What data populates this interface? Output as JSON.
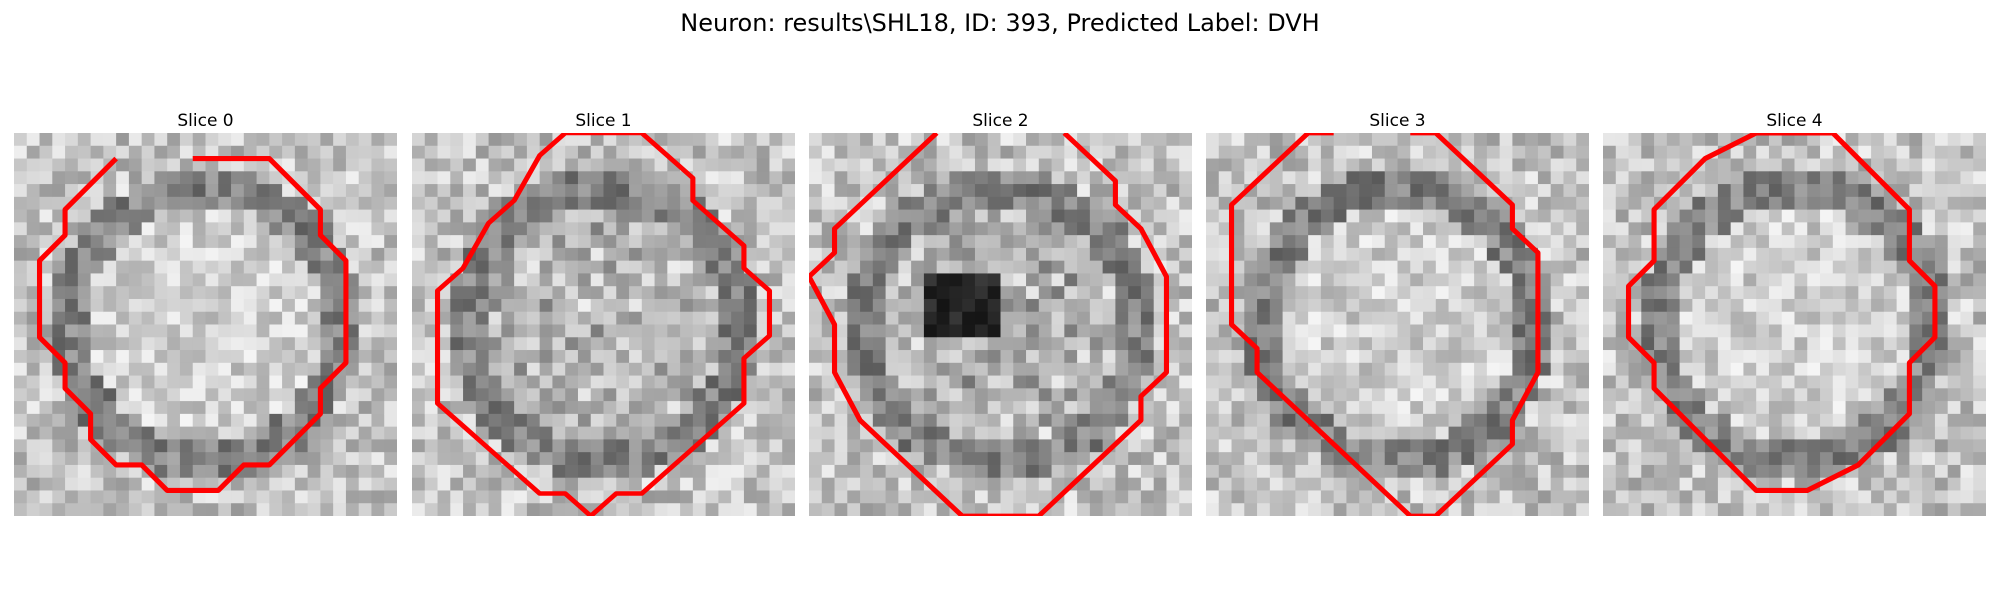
{
  "figure": {
    "title": "Neuron: results\\SHL18, ID: 393, Predicted Label: DVH"
  },
  "panels": [
    {
      "title": "Slice 0",
      "contour": [
        [
          7,
          1
        ],
        [
          10,
          1
        ],
        [
          12,
          3
        ],
        [
          12,
          4
        ],
        [
          13,
          5
        ],
        [
          13,
          9
        ],
        [
          12,
          10
        ],
        [
          12,
          11
        ],
        [
          10,
          13
        ],
        [
          9,
          13
        ],
        [
          8,
          14
        ],
        [
          6,
          14
        ],
        [
          5,
          13
        ],
        [
          4,
          13
        ],
        [
          3,
          12
        ],
        [
          3,
          11
        ],
        [
          2,
          10
        ],
        [
          2,
          9
        ],
        [
          1,
          8
        ],
        [
          1,
          5
        ],
        [
          2,
          4
        ],
        [
          2,
          3
        ],
        [
          4,
          1
        ]
      ]
    },
    {
      "title": "Slice 1",
      "contour": [
        [
          6,
          0
        ],
        [
          9,
          0
        ],
        [
          10,
          1
        ],
        [
          11,
          2
        ],
        [
          11,
          3
        ],
        [
          12,
          4
        ],
        [
          13,
          5
        ],
        [
          13,
          6
        ],
        [
          14,
          7
        ],
        [
          14,
          9
        ],
        [
          13,
          10
        ],
        [
          13,
          12
        ],
        [
          12,
          13
        ],
        [
          11,
          14
        ],
        [
          10,
          15
        ],
        [
          9,
          16
        ],
        [
          8,
          16
        ],
        [
          7,
          17
        ],
        [
          6,
          16
        ],
        [
          5,
          16
        ],
        [
          4,
          15
        ],
        [
          3,
          14
        ],
        [
          2,
          13
        ],
        [
          1,
          12
        ],
        [
          1,
          7
        ],
        [
          2,
          6
        ],
        [
          3,
          4
        ],
        [
          4,
          3
        ],
        [
          5,
          1
        ]
      ]
    },
    {
      "title": "Slice 2",
      "contour": [
        [
          5,
          -1
        ],
        [
          4,
          0
        ],
        [
          3,
          1
        ],
        [
          2,
          2
        ],
        [
          1,
          3
        ],
        [
          1,
          4
        ],
        [
          0,
          5
        ],
        [
          1,
          7
        ],
        [
          1,
          9
        ],
        [
          2,
          11
        ],
        [
          3,
          12
        ],
        [
          4,
          13
        ],
        [
          5,
          14
        ],
        [
          6,
          15
        ],
        [
          9,
          15
        ],
        [
          10,
          14
        ],
        [
          11,
          13
        ],
        [
          12,
          12
        ],
        [
          13,
          11
        ],
        [
          13,
          10
        ],
        [
          14,
          9
        ],
        [
          14,
          5
        ],
        [
          13,
          3
        ],
        [
          12,
          2
        ],
        [
          12,
          1
        ],
        [
          11,
          0
        ],
        [
          10,
          -1
        ]
      ]
    },
    {
      "title": "Slice 3",
      "contour": [
        [
          5,
          0
        ],
        [
          4,
          0
        ],
        [
          3,
          1
        ],
        [
          2,
          2
        ],
        [
          1,
          3
        ],
        [
          1,
          4
        ],
        [
          1,
          5
        ],
        [
          1,
          8
        ],
        [
          2,
          9
        ],
        [
          2,
          10
        ],
        [
          3,
          11
        ],
        [
          4,
          12
        ],
        [
          5,
          13
        ],
        [
          6,
          14
        ],
        [
          7,
          15
        ],
        [
          8,
          16
        ],
        [
          9,
          16
        ],
        [
          10,
          15
        ],
        [
          11,
          14
        ],
        [
          12,
          13
        ],
        [
          12,
          12
        ],
        [
          13,
          10
        ],
        [
          13,
          5
        ],
        [
          12,
          4
        ],
        [
          12,
          3
        ],
        [
          11,
          2
        ],
        [
          10,
          1
        ],
        [
          9,
          0
        ],
        [
          8,
          0
        ]
      ]
    },
    {
      "title": "Slice 4",
      "contour": [
        [
          7,
          0
        ],
        [
          9,
          0
        ],
        [
          10,
          1
        ],
        [
          11,
          2
        ],
        [
          12,
          3
        ],
        [
          12,
          5
        ],
        [
          13,
          6
        ],
        [
          13,
          8
        ],
        [
          12,
          9
        ],
        [
          12,
          11
        ],
        [
          11,
          12
        ],
        [
          10,
          13
        ],
        [
          8,
          14
        ],
        [
          6,
          14
        ],
        [
          5,
          13
        ],
        [
          4,
          12
        ],
        [
          3,
          11
        ],
        [
          2,
          10
        ],
        [
          2,
          9
        ],
        [
          1,
          8
        ],
        [
          1,
          6
        ],
        [
          2,
          5
        ],
        [
          2,
          3
        ],
        [
          3,
          2
        ],
        [
          4,
          1
        ],
        [
          6,
          0
        ]
      ]
    }
  ]
}
